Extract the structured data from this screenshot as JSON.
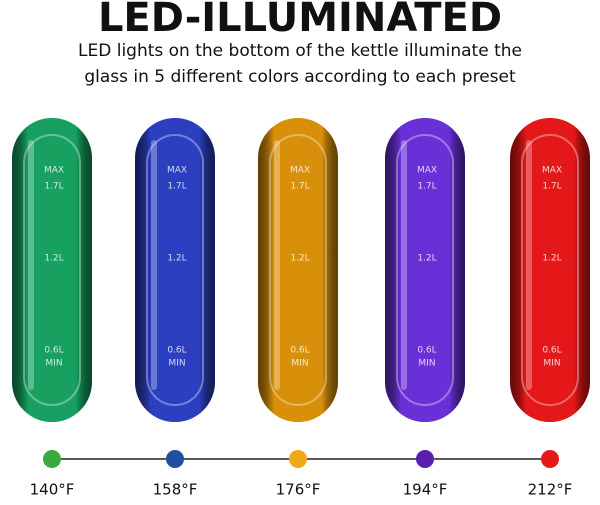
{
  "title": "LED-ILLUMINATED",
  "subtitle_lines": [
    "LED lights on the bottom of the kettle illuminate the",
    "glass in 5 different colors according to each preset"
  ],
  "glass_marks": [
    "MAX",
    "1.7L",
    "1.2L",
    "0.6L",
    "MIN"
  ],
  "presets": [
    {
      "label": "140°F",
      "glass_color": "#17a060",
      "dot_color": "#3aaa3a"
    },
    {
      "label": "158°F",
      "glass_color": "#2b3fc0",
      "dot_color": "#1f4fa0"
    },
    {
      "label": "176°F",
      "glass_color": "#d8900a",
      "dot_color": "#f0a818"
    },
    {
      "label": "194°F",
      "glass_color": "#6a30d8",
      "dot_color": "#5a1fb0"
    },
    {
      "label": "212°F",
      "glass_color": "#e41818",
      "dot_color": "#e81818"
    }
  ]
}
